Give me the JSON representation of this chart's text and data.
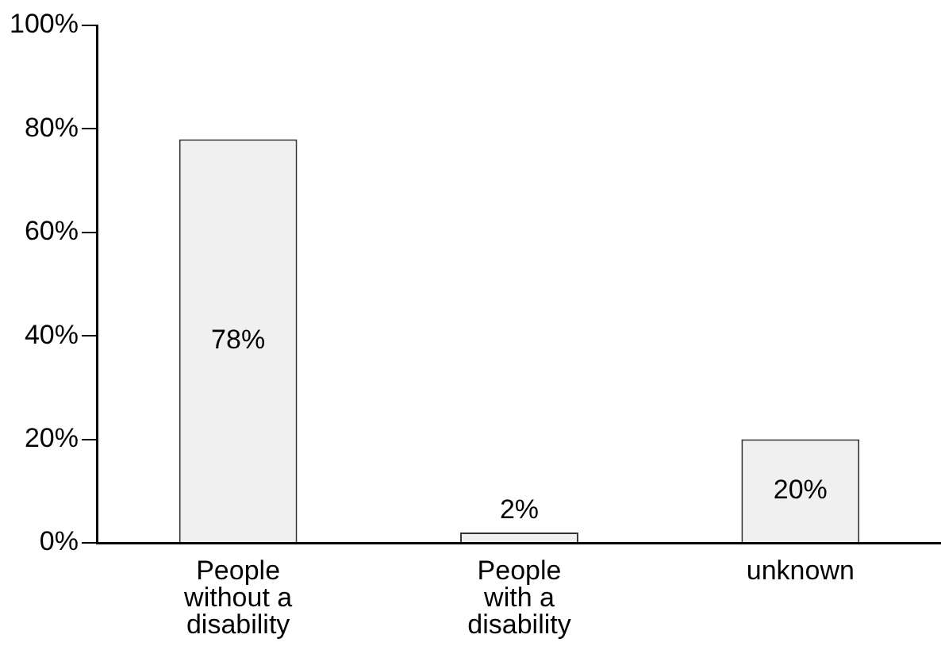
{
  "chart_data": {
    "type": "bar",
    "categories": [
      "People without a disability",
      "People with a disability",
      "unknown"
    ],
    "values": [
      78,
      2,
      20
    ],
    "value_labels": [
      "78%",
      "2%",
      "20%"
    ],
    "color": "#f0f0f0",
    "ylim": [
      0,
      100
    ],
    "yticks": [
      {
        "value": 0,
        "label": "0%"
      },
      {
        "value": 20,
        "label": "20%"
      },
      {
        "value": 40,
        "label": "40%"
      },
      {
        "value": 60,
        "label": "60%"
      },
      {
        "value": 80,
        "label": "80%"
      },
      {
        "value": 100,
        "label": "100%"
      }
    ],
    "grid": false,
    "legend": false
  }
}
